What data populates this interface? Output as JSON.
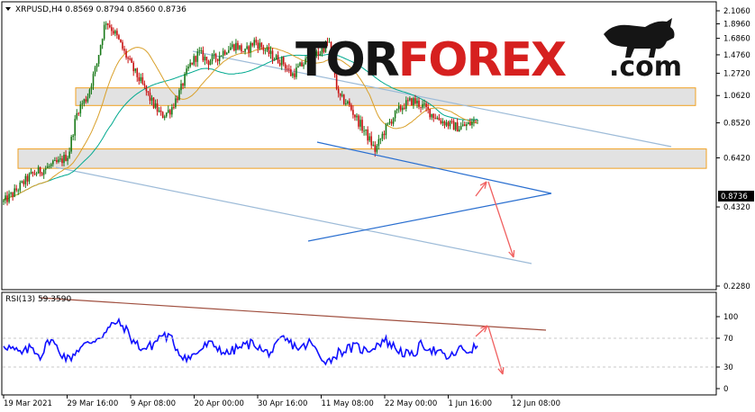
{
  "chart_data": {
    "type": "candlestick",
    "symbol_line": "XRPUSD,H4  0.8569 0.8794 0.8560 0.8736",
    "current_price_label": "0.8736",
    "current_price": 0.8736,
    "price_axis": {
      "scale": "log",
      "ylim": [
        0.228,
        2.2
      ],
      "ticks": [
        "2.1060",
        "1.8960",
        "1.6860",
        "1.4760",
        "1.2720",
        "1.0620",
        "0.8520",
        "0.6420",
        "0.4320",
        "0.2280"
      ]
    },
    "x_tick_labels": [
      "19 Mar 2021",
      "29 Mar 16:00",
      "9 Apr 08:00",
      "20 Apr 00:00",
      "30 Apr 16:00",
      "11 May 08:00",
      "22 May 00:00",
      "1 Jun 16:00",
      "12 Jun 08:00"
    ],
    "price_path": [
      0.45,
      0.48,
      0.52,
      0.56,
      0.58,
      0.6,
      0.62,
      0.66,
      0.95,
      1.05,
      1.35,
      1.95,
      1.75,
      1.5,
      1.3,
      1.15,
      1.0,
      0.9,
      0.95,
      1.1,
      1.35,
      1.5,
      1.4,
      1.45,
      1.55,
      1.6,
      1.5,
      1.65,
      1.55,
      1.45,
      1.4,
      1.25,
      1.35,
      1.45,
      1.5,
      1.65,
      1.05,
      1.0,
      0.88,
      0.78,
      0.68,
      0.8,
      0.9,
      0.98,
      1.02,
      0.98,
      0.92,
      0.87,
      0.84,
      0.82,
      0.84,
      0.8736
    ],
    "indicators": {
      "ma_slow_color": "#00a98f",
      "ma_fast_color": "#d9a02a"
    },
    "annotations": {
      "zone_color": "#f0a020",
      "channel_color": "#9dbbd8",
      "triangle_color": "#2a6fd0",
      "arrow_color": "#f06060"
    },
    "rsi": {
      "label": "RSI(13) 59.3590",
      "ticks": [
        "100",
        "70",
        "30",
        "0"
      ],
      "ylim": [
        0,
        100
      ],
      "path": [
        62,
        54,
        48,
        58,
        45,
        70,
        52,
        40,
        55,
        62,
        70,
        78,
        93,
        85,
        65,
        55,
        60,
        75,
        70,
        48,
        42,
        52,
        62,
        58,
        48,
        55,
        60,
        64,
        50,
        52,
        70,
        62,
        55,
        65,
        45,
        38,
        50,
        55,
        58,
        52,
        60,
        68,
        58,
        50,
        45,
        62,
        55,
        48,
        42,
        55,
        52,
        59.359
      ],
      "trendline_color": "#a05040",
      "line_color": "#1010ff"
    }
  },
  "brand": {
    "part1": "TOR",
    "part2": "FOREX",
    "suffix": ".com"
  }
}
